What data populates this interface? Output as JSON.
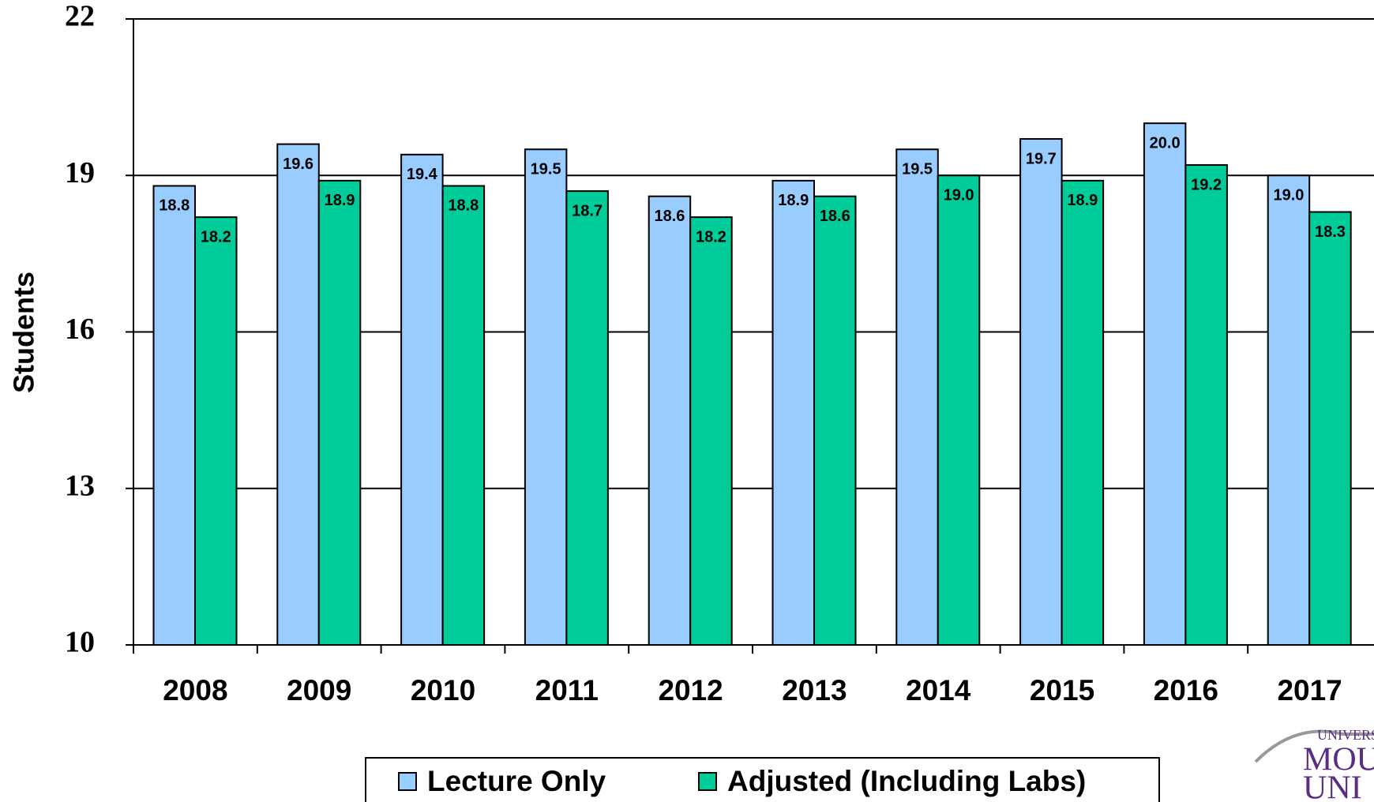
{
  "chart_data": {
    "type": "bar",
    "y_label": "Students",
    "categories": [
      "2008",
      "2009",
      "2010",
      "2011",
      "2012",
      "2013",
      "2014",
      "2015",
      "2016",
      "2017"
    ],
    "series": [
      {
        "name": "Lecture Only",
        "color": "#99ccff",
        "values": [
          18.8,
          19.6,
          19.4,
          19.5,
          18.6,
          18.9,
          19.5,
          19.7,
          20.0,
          19.0
        ],
        "value_labels": [
          "18.8",
          "19.6",
          "19.4",
          "19.5",
          "18.6",
          "18.9",
          "19.5",
          "19.7",
          "20.0",
          "19.0"
        ]
      },
      {
        "name": "Adjusted (Including Labs)",
        "color": "#00cc99",
        "values": [
          18.2,
          18.9,
          18.8,
          18.7,
          18.2,
          18.6,
          19.0,
          18.9,
          19.2,
          18.3
        ],
        "value_labels": [
          "18.2",
          "18.9",
          "18.8",
          "18.7",
          "18.2",
          "18.6",
          "19.0",
          "18.9",
          "19.2",
          "18.3"
        ]
      }
    ],
    "ylim": [
      10,
      22
    ],
    "yticks": [
      10,
      13,
      16,
      19,
      22
    ],
    "grid": true,
    "legend": "bottom",
    "logo": [
      "UNIVERS",
      "MOU",
      "UNI"
    ]
  }
}
